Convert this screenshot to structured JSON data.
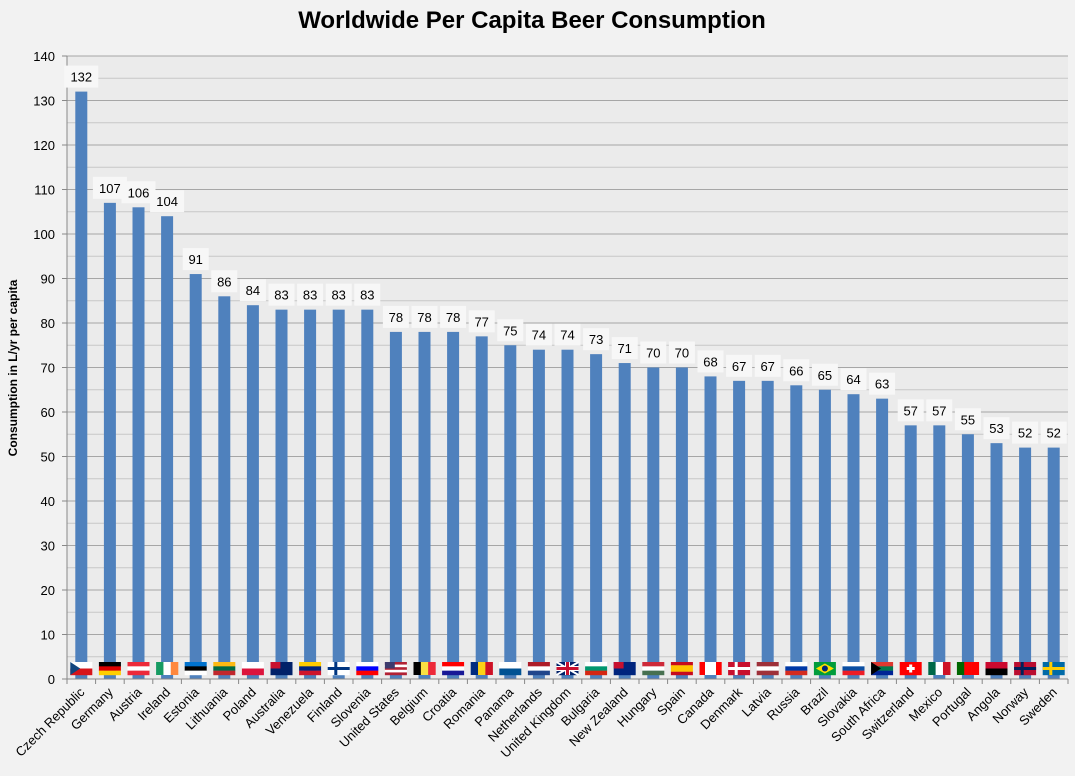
{
  "chart_data": {
    "type": "bar",
    "title": "Worldwide Per Capita Beer Consumption",
    "xlabel": "",
    "ylabel": "Consumption in L/yr per capita",
    "ylim": [
      0,
      140
    ],
    "yticks": [
      0,
      10,
      20,
      30,
      40,
      50,
      60,
      70,
      80,
      90,
      100,
      110,
      120,
      130,
      140
    ],
    "grid": true,
    "legend": "none",
    "bar_color": "#4f81bd",
    "plot_background": "#ebebeb",
    "categories": [
      "Czech Republic",
      "Germany",
      "Austria",
      "Ireland",
      "Estonia",
      "Lithuania",
      "Poland",
      "Australia",
      "Venezuela",
      "Finland",
      "Slovenia",
      "United States",
      "Belgium",
      "Croatia",
      "Romania",
      "Panama",
      "Netherlands",
      "United Kingdom",
      "Bulgaria",
      "New Zealand",
      "Hungary",
      "Spain",
      "Canada",
      "Denmark",
      "Latvia",
      "Russia",
      "Brazil",
      "Slovakia",
      "South Africa",
      "Switzerland",
      "Mexico",
      "Portugal",
      "Angola",
      "Norway",
      "Sweden"
    ],
    "values": [
      132,
      107,
      106,
      104,
      91,
      86,
      84,
      83,
      83,
      83,
      83,
      78,
      78,
      78,
      77,
      75,
      74,
      74,
      73,
      71,
      70,
      70,
      68,
      67,
      67,
      66,
      65,
      64,
      63,
      57,
      57,
      55,
      53,
      52,
      52
    ],
    "flags": [
      {
        "dir": "h",
        "c": [
          "#ffffff",
          "#d7141a"
        ],
        "tri": "#11457e"
      },
      {
        "dir": "h",
        "c": [
          "#000000",
          "#dd0000",
          "#ffce00"
        ]
      },
      {
        "dir": "h",
        "c": [
          "#ed2939",
          "#ffffff",
          "#ed2939"
        ]
      },
      {
        "dir": "v",
        "c": [
          "#169b62",
          "#ffffff",
          "#ff883e"
        ]
      },
      {
        "dir": "h",
        "c": [
          "#0072ce",
          "#000000",
          "#ffffff"
        ]
      },
      {
        "dir": "h",
        "c": [
          "#fdb913",
          "#006a44",
          "#c1272d"
        ]
      },
      {
        "dir": "h",
        "c": [
          "#ffffff",
          "#dc143c"
        ]
      },
      {
        "dir": "h",
        "c": [
          "#012169"
        ],
        "canton": "#c8102e"
      },
      {
        "dir": "h",
        "c": [
          "#ffcc00",
          "#00247d",
          "#cf142b"
        ]
      },
      {
        "dir": "h",
        "c": [
          "#ffffff"
        ],
        "cross": "#003580"
      },
      {
        "dir": "h",
        "c": [
          "#ffffff",
          "#0000ff",
          "#ff0000"
        ]
      },
      {
        "dir": "h",
        "c": [
          "#b22234",
          "#ffffff",
          "#b22234",
          "#ffffff",
          "#b22234"
        ],
        "canton": "#3c3b6e"
      },
      {
        "dir": "v",
        "c": [
          "#000000",
          "#fae042",
          "#ed2939"
        ]
      },
      {
        "dir": "h",
        "c": [
          "#ff0000",
          "#ffffff",
          "#171796"
        ]
      },
      {
        "dir": "v",
        "c": [
          "#002b7f",
          "#fcd116",
          "#ce1126"
        ]
      },
      {
        "dir": "h",
        "c": [
          "#ffffff",
          "#005293"
        ],
        "canton": "#ffffff"
      },
      {
        "dir": "h",
        "c": [
          "#ae1c28",
          "#ffffff",
          "#21468b"
        ]
      },
      {
        "dir": "h",
        "c": [
          "#012169"
        ],
        "cross": "#c8102e",
        "uk": true
      },
      {
        "dir": "h",
        "c": [
          "#ffffff",
          "#00966e",
          "#d62612"
        ]
      },
      {
        "dir": "h",
        "c": [
          "#00247d"
        ],
        "canton": "#c8102e"
      },
      {
        "dir": "h",
        "c": [
          "#ce2939",
          "#ffffff",
          "#477050"
        ]
      },
      {
        "dir": "h",
        "c": [
          "#c60b1e",
          "#ffc400",
          "#ffc400",
          "#c60b1e"
        ]
      },
      {
        "dir": "v",
        "c": [
          "#ff0000",
          "#ffffff",
          "#ffffff",
          "#ff0000"
        ]
      },
      {
        "dir": "h",
        "c": [
          "#c8102e"
        ],
        "cross": "#ffffff"
      },
      {
        "dir": "h",
        "c": [
          "#9e3039",
          "#ffffff",
          "#9e3039"
        ]
      },
      {
        "dir": "h",
        "c": [
          "#ffffff",
          "#0039a6",
          "#d52b1e"
        ]
      },
      {
        "dir": "h",
        "c": [
          "#009c3b"
        ],
        "diamond": "#ffdf00"
      },
      {
        "dir": "h",
        "c": [
          "#ffffff",
          "#0b4ea2",
          "#ee1c25"
        ]
      },
      {
        "dir": "h",
        "c": [
          "#de3831",
          "#007a4d",
          "#002395"
        ],
        "tri": "#000000"
      },
      {
        "dir": "h",
        "c": [
          "#ff0000"
        ],
        "plus": "#ffffff"
      },
      {
        "dir": "v",
        "c": [
          "#006847",
          "#ffffff",
          "#ce1126"
        ]
      },
      {
        "dir": "v",
        "c": [
          "#006600",
          "#ff0000",
          "#ff0000"
        ]
      },
      {
        "dir": "h",
        "c": [
          "#cc092f",
          "#000000"
        ]
      },
      {
        "dir": "h",
        "c": [
          "#ba0c2f"
        ],
        "cross": "#00205b"
      },
      {
        "dir": "h",
        "c": [
          "#006aa7"
        ],
        "cross": "#fecc02"
      }
    ]
  }
}
